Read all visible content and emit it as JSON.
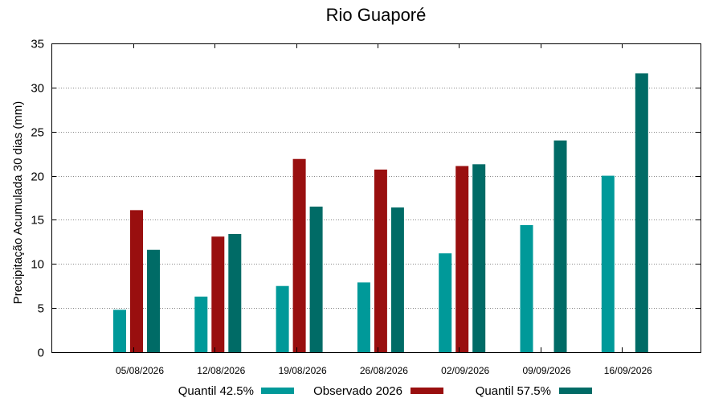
{
  "chart_data": {
    "type": "bar",
    "title": "Rio Guaporé",
    "xlabel": "",
    "ylabel": "Precipitação Acumulada 30 dias (mm)",
    "ylim": [
      0,
      35
    ],
    "yticks": [
      0,
      5,
      10,
      15,
      20,
      25,
      30,
      35
    ],
    "grid": true,
    "legend_position": "bottom",
    "categories": [
      "05/08/2026",
      "12/08/2026",
      "19/08/2026",
      "26/08/2026",
      "02/09/2026",
      "09/09/2026",
      "16/09/2026"
    ],
    "series": [
      {
        "name": "Quantil 42.5%",
        "color": "#009999",
        "values": [
          4.8,
          6.3,
          7.5,
          7.9,
          11.2,
          14.4,
          20.0
        ]
      },
      {
        "name": "Observado 2026",
        "color": "#990f0f",
        "values": [
          16.1,
          13.1,
          21.9,
          20.7,
          21.1,
          null,
          null
        ]
      },
      {
        "name": "Quantil 57.5%",
        "color": "#006b66",
        "values": [
          11.6,
          13.4,
          16.5,
          16.4,
          21.3,
          24.0,
          31.6
        ]
      }
    ]
  }
}
